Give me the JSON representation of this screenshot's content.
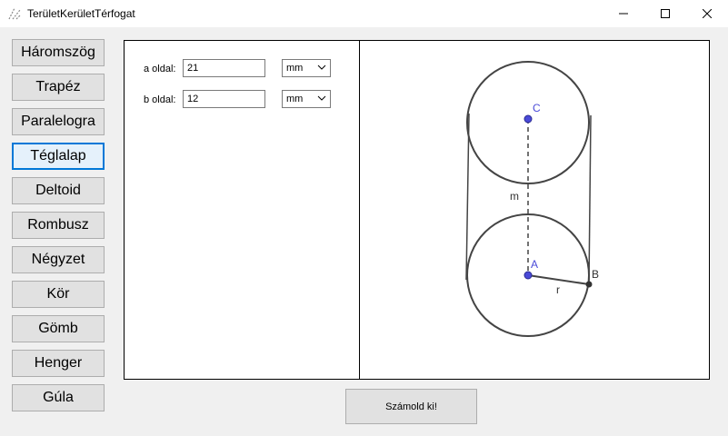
{
  "window": {
    "title": "TerületKerületTérfogat",
    "min_icon": "minimize-icon",
    "max_icon": "maximize-icon",
    "close_icon": "close-icon"
  },
  "nav": {
    "items": [
      {
        "label": "Háromszög",
        "active": false
      },
      {
        "label": "Trapéz",
        "active": false
      },
      {
        "label": "Paralelogra",
        "active": false
      },
      {
        "label": "Téglalap",
        "active": true
      },
      {
        "label": "Deltoid",
        "active": false
      },
      {
        "label": "Rombusz",
        "active": false
      },
      {
        "label": "Négyzet",
        "active": false
      },
      {
        "label": "Kör",
        "active": false
      },
      {
        "label": "Gömb",
        "active": false
      },
      {
        "label": "Henger",
        "active": false
      },
      {
        "label": "Gúla",
        "active": false
      }
    ]
  },
  "form": {
    "a_label": "a oldal:",
    "a_value": "21",
    "a_unit": "mm",
    "b_label": "b oldal:",
    "b_value": "12",
    "b_unit": "mm"
  },
  "figure": {
    "label_c": "C",
    "label_a": "A",
    "label_b": "B",
    "label_m": "m",
    "label_r": "r"
  },
  "actions": {
    "calculate_label": "Számold ki!"
  }
}
